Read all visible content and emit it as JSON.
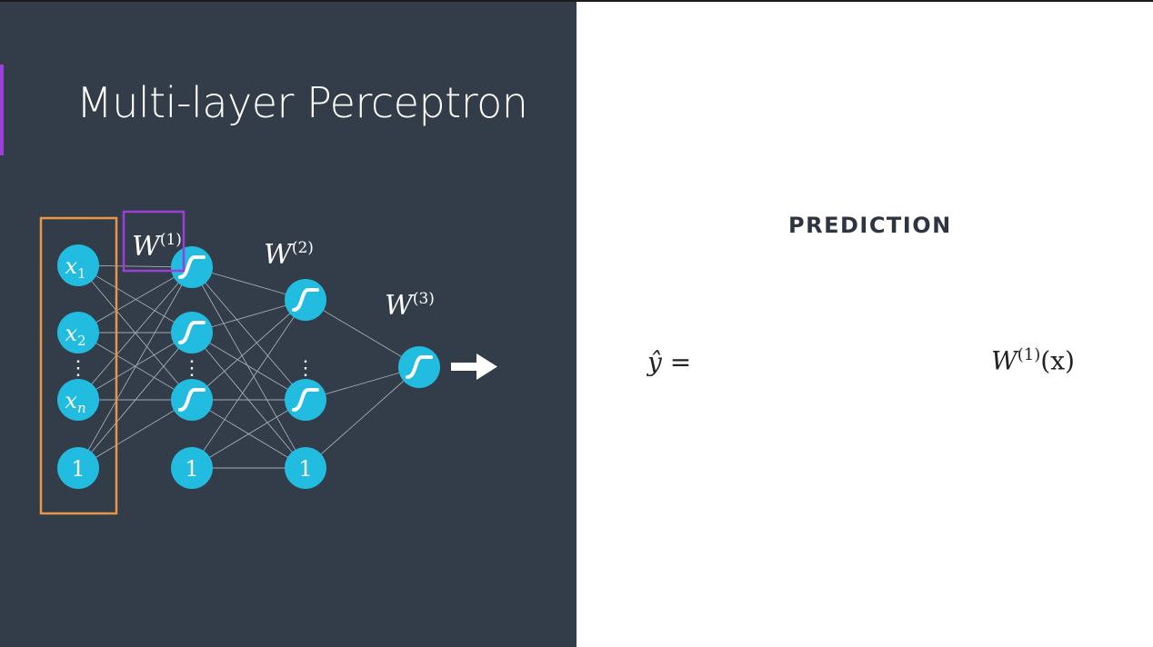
{
  "slide": {
    "title": "Multi-layer Perceptron",
    "section_label": "PREDICTION",
    "equation": {
      "lhs_symbol": "ŷ",
      "equals": "=",
      "rhs_base": "W",
      "rhs_superscript": "(1)",
      "rhs_argument": "(x)"
    }
  },
  "network": {
    "inputs": [
      "x₁",
      "x₂",
      "⋮",
      "xₙ",
      "1"
    ],
    "bias_label": "1",
    "vertical_dots": "⋮",
    "weights": [
      "W(1)",
      "W(2)",
      "W(3)"
    ],
    "highlighted_weight": "W(1)",
    "output_arrow": "right-arrow-icon",
    "activation_icon": "sigmoid-icon"
  },
  "colors": {
    "panel": "#333d49",
    "node": "#21bce0",
    "input_highlight": "#e8974a",
    "weight_highlight": "#9b3fd8",
    "accent": "#9b3fd8"
  }
}
